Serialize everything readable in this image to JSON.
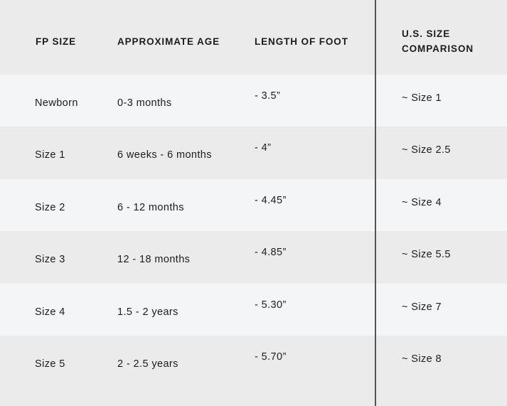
{
  "headers": [
    "FP SIZE",
    "APPROXIMATE AGE",
    "LENGTH OF FOOT",
    "U.S. SIZE COMPARISON"
  ],
  "rows": [
    [
      "Newborn",
      "0-3 months",
      "- 3.5”",
      "~ Size 1"
    ],
    [
      "Size 1",
      "6 weeks - 6 months",
      "- 4”",
      "~ Size 2.5"
    ],
    [
      "Size 2",
      "6 - 12 months",
      "- 4.45”",
      "~ Size 4"
    ],
    [
      "Size 3",
      "12 - 18 months",
      "- 4.85”",
      "~ Size 5.5"
    ],
    [
      "Size 4",
      "1.5 - 2 years",
      "- 5.30”",
      "~ Size 7"
    ],
    [
      "Size 5",
      "2 - 2.5 years",
      "- 5.70”",
      "~ Size 8"
    ]
  ],
  "colors": {
    "header_bg": "#ebebeb",
    "row_light": "#f4f5f6",
    "row_dark": "#ebebeb",
    "divider": "#555555",
    "text": "#1c1c1c"
  }
}
